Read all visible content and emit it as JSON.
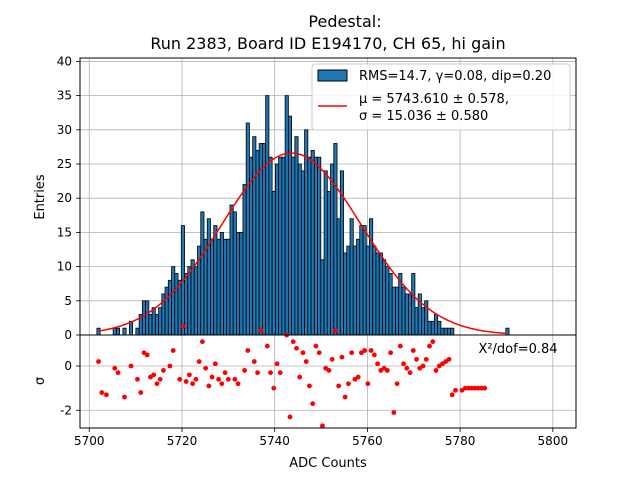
{
  "chart_data": {
    "type": "bar",
    "title_line1": "Pedestal:",
    "title_line2": "Run 2383, Board ID E194170, CH 65, hi gain",
    "xlabel": "ADC Counts",
    "ylabel_top": "Entries",
    "ylabel_bottom": "σ",
    "xlim": [
      5698,
      5805
    ],
    "ylim_top": [
      0,
      40.5
    ],
    "ylim_bottom": [
      -2.8,
      1.4
    ],
    "xticks": [
      "5700",
      "5720",
      "5740",
      "5760",
      "5780",
      "5800"
    ],
    "yticks_top": [
      "0",
      "5",
      "10",
      "15",
      "20",
      "25",
      "30",
      "35",
      "40"
    ],
    "yticks_bottom": [
      "-2",
      "0"
    ],
    "hist_color": "#1f77b4",
    "fit_color": "#ff0000",
    "resid_color": "#ff0000",
    "legend": {
      "hist_label": "RMS=14.7, γ=0.08, dip=0.20",
      "fit_label_line1": "μ = 5743.610 ± 0.578,",
      "fit_label_line2": "σ = 15.036 ± 0.580"
    },
    "chi2_label": "X²/dof=0.84",
    "fit": {
      "mu": 5743.61,
      "sigma": 15.036,
      "amplitude": 26.6
    },
    "bin_width": 0.7,
    "bins": [
      {
        "x": 5702.0,
        "y": 1
      },
      {
        "x": 5705.5,
        "y": 1
      },
      {
        "x": 5706.2,
        "y": 1
      },
      {
        "x": 5707.6,
        "y": 1
      },
      {
        "x": 5709.0,
        "y": 2
      },
      {
        "x": 5710.4,
        "y": 1
      },
      {
        "x": 5711.1,
        "y": 3
      },
      {
        "x": 5711.8,
        "y": 5
      },
      {
        "x": 5712.5,
        "y": 5
      },
      {
        "x": 5713.2,
        "y": 3
      },
      {
        "x": 5713.9,
        "y": 4
      },
      {
        "x": 5714.6,
        "y": 3
      },
      {
        "x": 5715.3,
        "y": 4
      },
      {
        "x": 5716.0,
        "y": 6
      },
      {
        "x": 5716.7,
        "y": 7
      },
      {
        "x": 5717.4,
        "y": 8
      },
      {
        "x": 5718.1,
        "y": 10
      },
      {
        "x": 5718.8,
        "y": 9
      },
      {
        "x": 5719.5,
        "y": 8
      },
      {
        "x": 5720.2,
        "y": 16
      },
      {
        "x": 5720.9,
        "y": 9
      },
      {
        "x": 5721.6,
        "y": 10
      },
      {
        "x": 5722.3,
        "y": 11
      },
      {
        "x": 5723.0,
        "y": 10
      },
      {
        "x": 5723.7,
        "y": 13
      },
      {
        "x": 5724.4,
        "y": 18
      },
      {
        "x": 5725.1,
        "y": 14
      },
      {
        "x": 5725.8,
        "y": 17
      },
      {
        "x": 5726.5,
        "y": 14
      },
      {
        "x": 5727.2,
        "y": 16
      },
      {
        "x": 5727.9,
        "y": 14
      },
      {
        "x": 5728.6,
        "y": 15
      },
      {
        "x": 5729.3,
        "y": 14
      },
      {
        "x": 5730.0,
        "y": 14
      },
      {
        "x": 5730.7,
        "y": 19
      },
      {
        "x": 5731.4,
        "y": 18
      },
      {
        "x": 5732.1,
        "y": 15
      },
      {
        "x": 5732.8,
        "y": 15
      },
      {
        "x": 5733.5,
        "y": 22
      },
      {
        "x": 5734.2,
        "y": 31
      },
      {
        "x": 5734.9,
        "y": 26
      },
      {
        "x": 5735.6,
        "y": 29
      },
      {
        "x": 5736.3,
        "y": 27
      },
      {
        "x": 5737.0,
        "y": 28
      },
      {
        "x": 5737.7,
        "y": 28
      },
      {
        "x": 5738.4,
        "y": 35
      },
      {
        "x": 5739.1,
        "y": 26
      },
      {
        "x": 5739.8,
        "y": 21
      },
      {
        "x": 5740.5,
        "y": 25
      },
      {
        "x": 5741.2,
        "y": 26
      },
      {
        "x": 5741.9,
        "y": 26
      },
      {
        "x": 5742.6,
        "y": 35
      },
      {
        "x": 5743.3,
        "y": 32
      },
      {
        "x": 5744.0,
        "y": 26
      },
      {
        "x": 5744.7,
        "y": 29
      },
      {
        "x": 5745.4,
        "y": 25
      },
      {
        "x": 5746.1,
        "y": 24
      },
      {
        "x": 5746.8,
        "y": 30
      },
      {
        "x": 5747.5,
        "y": 26
      },
      {
        "x": 5748.2,
        "y": 27
      },
      {
        "x": 5748.9,
        "y": 26
      },
      {
        "x": 5749.6,
        "y": 26
      },
      {
        "x": 5750.3,
        "y": 11
      },
      {
        "x": 5751.0,
        "y": 24
      },
      {
        "x": 5751.7,
        "y": 21
      },
      {
        "x": 5752.4,
        "y": 25
      },
      {
        "x": 5753.1,
        "y": 28
      },
      {
        "x": 5753.8,
        "y": 17
      },
      {
        "x": 5754.5,
        "y": 24
      },
      {
        "x": 5755.2,
        "y": 12
      },
      {
        "x": 5755.9,
        "y": 13
      },
      {
        "x": 5756.6,
        "y": 17
      },
      {
        "x": 5757.3,
        "y": 13
      },
      {
        "x": 5758.0,
        "y": 14
      },
      {
        "x": 5758.7,
        "y": 16
      },
      {
        "x": 5759.4,
        "y": 16
      },
      {
        "x": 5760.1,
        "y": 13
      },
      {
        "x": 5760.8,
        "y": 17
      },
      {
        "x": 5761.5,
        "y": 13
      },
      {
        "x": 5762.2,
        "y": 12
      },
      {
        "x": 5762.9,
        "y": 12
      },
      {
        "x": 5763.6,
        "y": 11
      },
      {
        "x": 5764.3,
        "y": 10
      },
      {
        "x": 5765.0,
        "y": 9
      },
      {
        "x": 5765.7,
        "y": 7
      },
      {
        "x": 5766.4,
        "y": 7
      },
      {
        "x": 5767.1,
        "y": 9
      },
      {
        "x": 5767.8,
        "y": 7
      },
      {
        "x": 5768.5,
        "y": 6
      },
      {
        "x": 5769.2,
        "y": 6
      },
      {
        "x": 5769.9,
        "y": 9
      },
      {
        "x": 5770.6,
        "y": 4
      },
      {
        "x": 5771.3,
        "y": 6
      },
      {
        "x": 5772.0,
        "y": 4
      },
      {
        "x": 5772.7,
        "y": 5
      },
      {
        "x": 5773.4,
        "y": 2
      },
      {
        "x": 5774.1,
        "y": 2
      },
      {
        "x": 5774.8,
        "y": 3
      },
      {
        "x": 5775.5,
        "y": 2
      },
      {
        "x": 5776.2,
        "y": 1
      },
      {
        "x": 5776.9,
        "y": 1
      },
      {
        "x": 5777.6,
        "y": 1
      },
      {
        "x": 5778.3,
        "y": 1
      },
      {
        "x": 5790.2,
        "y": 1
      }
    ],
    "residuals": [
      {
        "x": 5702.0,
        "y": 0.2
      },
      {
        "x": 5702.7,
        "y": -1.2
      },
      {
        "x": 5703.7,
        "y": -1.3
      },
      {
        "x": 5705.5,
        "y": -0.1
      },
      {
        "x": 5706.2,
        "y": -0.3
      },
      {
        "x": 5707.6,
        "y": -1.4
      },
      {
        "x": 5709.0,
        "y": 0.0
      },
      {
        "x": 5710.4,
        "y": -0.6
      },
      {
        "x": 5711.1,
        "y": -1.2
      },
      {
        "x": 5711.8,
        "y": 0.6
      },
      {
        "x": 5712.5,
        "y": 0.5
      },
      {
        "x": 5713.2,
        "y": -0.5
      },
      {
        "x": 5713.9,
        "y": -0.4
      },
      {
        "x": 5714.6,
        "y": -0.8
      },
      {
        "x": 5715.3,
        "y": -0.6
      },
      {
        "x": 5716.0,
        "y": -0.2
      },
      {
        "x": 5717.4,
        "y": 0.0
      },
      {
        "x": 5718.1,
        "y": 0.7
      },
      {
        "x": 5719.5,
        "y": -0.6
      },
      {
        "x": 5720.2,
        "y": 1.8
      },
      {
        "x": 5720.9,
        "y": -0.7
      },
      {
        "x": 5721.6,
        "y": -0.4
      },
      {
        "x": 5722.3,
        "y": -0.8
      },
      {
        "x": 5723.0,
        "y": -0.6
      },
      {
        "x": 5723.7,
        "y": 0.2
      },
      {
        "x": 5724.4,
        "y": 1.1
      },
      {
        "x": 5725.1,
        "y": -0.1
      },
      {
        "x": 5725.8,
        "y": -0.9
      },
      {
        "x": 5726.5,
        "y": -0.5
      },
      {
        "x": 5727.2,
        "y": 0.1
      },
      {
        "x": 5727.9,
        "y": -0.6
      },
      {
        "x": 5728.6,
        "y": -0.8
      },
      {
        "x": 5729.3,
        "y": -0.3
      },
      {
        "x": 5730.0,
        "y": -0.6
      },
      {
        "x": 5731.4,
        "y": -0.6
      },
      {
        "x": 5732.1,
        "y": -0.8
      },
      {
        "x": 5733.5,
        "y": -0.2
      },
      {
        "x": 5734.2,
        "y": 0.7
      },
      {
        "x": 5735.6,
        "y": 0.2
      },
      {
        "x": 5736.3,
        "y": -0.3
      },
      {
        "x": 5737.0,
        "y": 1.6
      },
      {
        "x": 5738.4,
        "y": 0.9
      },
      {
        "x": 5739.1,
        "y": -0.3
      },
      {
        "x": 5739.8,
        "y": -1.0
      },
      {
        "x": 5740.5,
        "y": 0.1
      },
      {
        "x": 5741.2,
        "y": -0.3
      },
      {
        "x": 5742.6,
        "y": 1.4
      },
      {
        "x": 5743.3,
        "y": -2.3
      },
      {
        "x": 5744.0,
        "y": 1.1
      },
      {
        "x": 5744.7,
        "y": 0.8
      },
      {
        "x": 5745.4,
        "y": -0.5
      },
      {
        "x": 5746.1,
        "y": 0.6
      },
      {
        "x": 5746.8,
        "y": 0.2
      },
      {
        "x": 5747.5,
        "y": -0.9
      },
      {
        "x": 5748.2,
        "y": -1.7
      },
      {
        "x": 5748.9,
        "y": 0.9
      },
      {
        "x": 5749.6,
        "y": 0.6
      },
      {
        "x": 5750.3,
        "y": -2.7
      },
      {
        "x": 5751.0,
        "y": -0.1
      },
      {
        "x": 5751.7,
        "y": -0.2
      },
      {
        "x": 5752.4,
        "y": 0.3
      },
      {
        "x": 5753.1,
        "y": 1.6
      },
      {
        "x": 5753.8,
        "y": -0.9
      },
      {
        "x": 5754.5,
        "y": 0.4
      },
      {
        "x": 5755.2,
        "y": -1.4
      },
      {
        "x": 5755.9,
        "y": -0.8
      },
      {
        "x": 5756.6,
        "y": 0.6
      },
      {
        "x": 5757.3,
        "y": -0.6
      },
      {
        "x": 5758.0,
        "y": -0.5
      },
      {
        "x": 5758.7,
        "y": 0.6
      },
      {
        "x": 5759.4,
        "y": 0.7
      },
      {
        "x": 5760.1,
        "y": -0.8
      },
      {
        "x": 5760.8,
        "y": 0.7
      },
      {
        "x": 5761.5,
        "y": 0.5
      },
      {
        "x": 5762.2,
        "y": 0.1
      },
      {
        "x": 5762.9,
        "y": -0.2
      },
      {
        "x": 5763.6,
        "y": -0.1
      },
      {
        "x": 5764.3,
        "y": -0.2
      },
      {
        "x": 5765.0,
        "y": 0.6
      },
      {
        "x": 5765.7,
        "y": -2.1
      },
      {
        "x": 5766.4,
        "y": -0.8
      },
      {
        "x": 5767.1,
        "y": 0.9
      },
      {
        "x": 5767.8,
        "y": 0.1
      },
      {
        "x": 5768.5,
        "y": -0.1
      },
      {
        "x": 5769.2,
        "y": -0.3
      },
      {
        "x": 5769.9,
        "y": 0.7
      },
      {
        "x": 5770.6,
        "y": 0.3
      },
      {
        "x": 5771.3,
        "y": -0.1
      },
      {
        "x": 5772.0,
        "y": 0.0
      },
      {
        "x": 5772.7,
        "y": 0.3
      },
      {
        "x": 5773.4,
        "y": 0.9
      },
      {
        "x": 5774.1,
        "y": 1.1
      },
      {
        "x": 5774.8,
        "y": -0.2
      },
      {
        "x": 5775.5,
        "y": 0.0
      },
      {
        "x": 5776.2,
        "y": 0.1
      },
      {
        "x": 5776.9,
        "y": 0.2
      },
      {
        "x": 5777.6,
        "y": 0.3
      },
      {
        "x": 5778.3,
        "y": -1.3
      },
      {
        "x": 5779.0,
        "y": -1.1
      },
      {
        "x": 5780.4,
        "y": -1.1
      },
      {
        "x": 5781.1,
        "y": -1.0
      },
      {
        "x": 5781.8,
        "y": -1.0
      },
      {
        "x": 5782.5,
        "y": -1.0
      },
      {
        "x": 5783.2,
        "y": -1.0
      },
      {
        "x": 5783.9,
        "y": -1.0
      },
      {
        "x": 5784.6,
        "y": -1.0
      },
      {
        "x": 5785.3,
        "y": -1.0
      }
    ]
  }
}
